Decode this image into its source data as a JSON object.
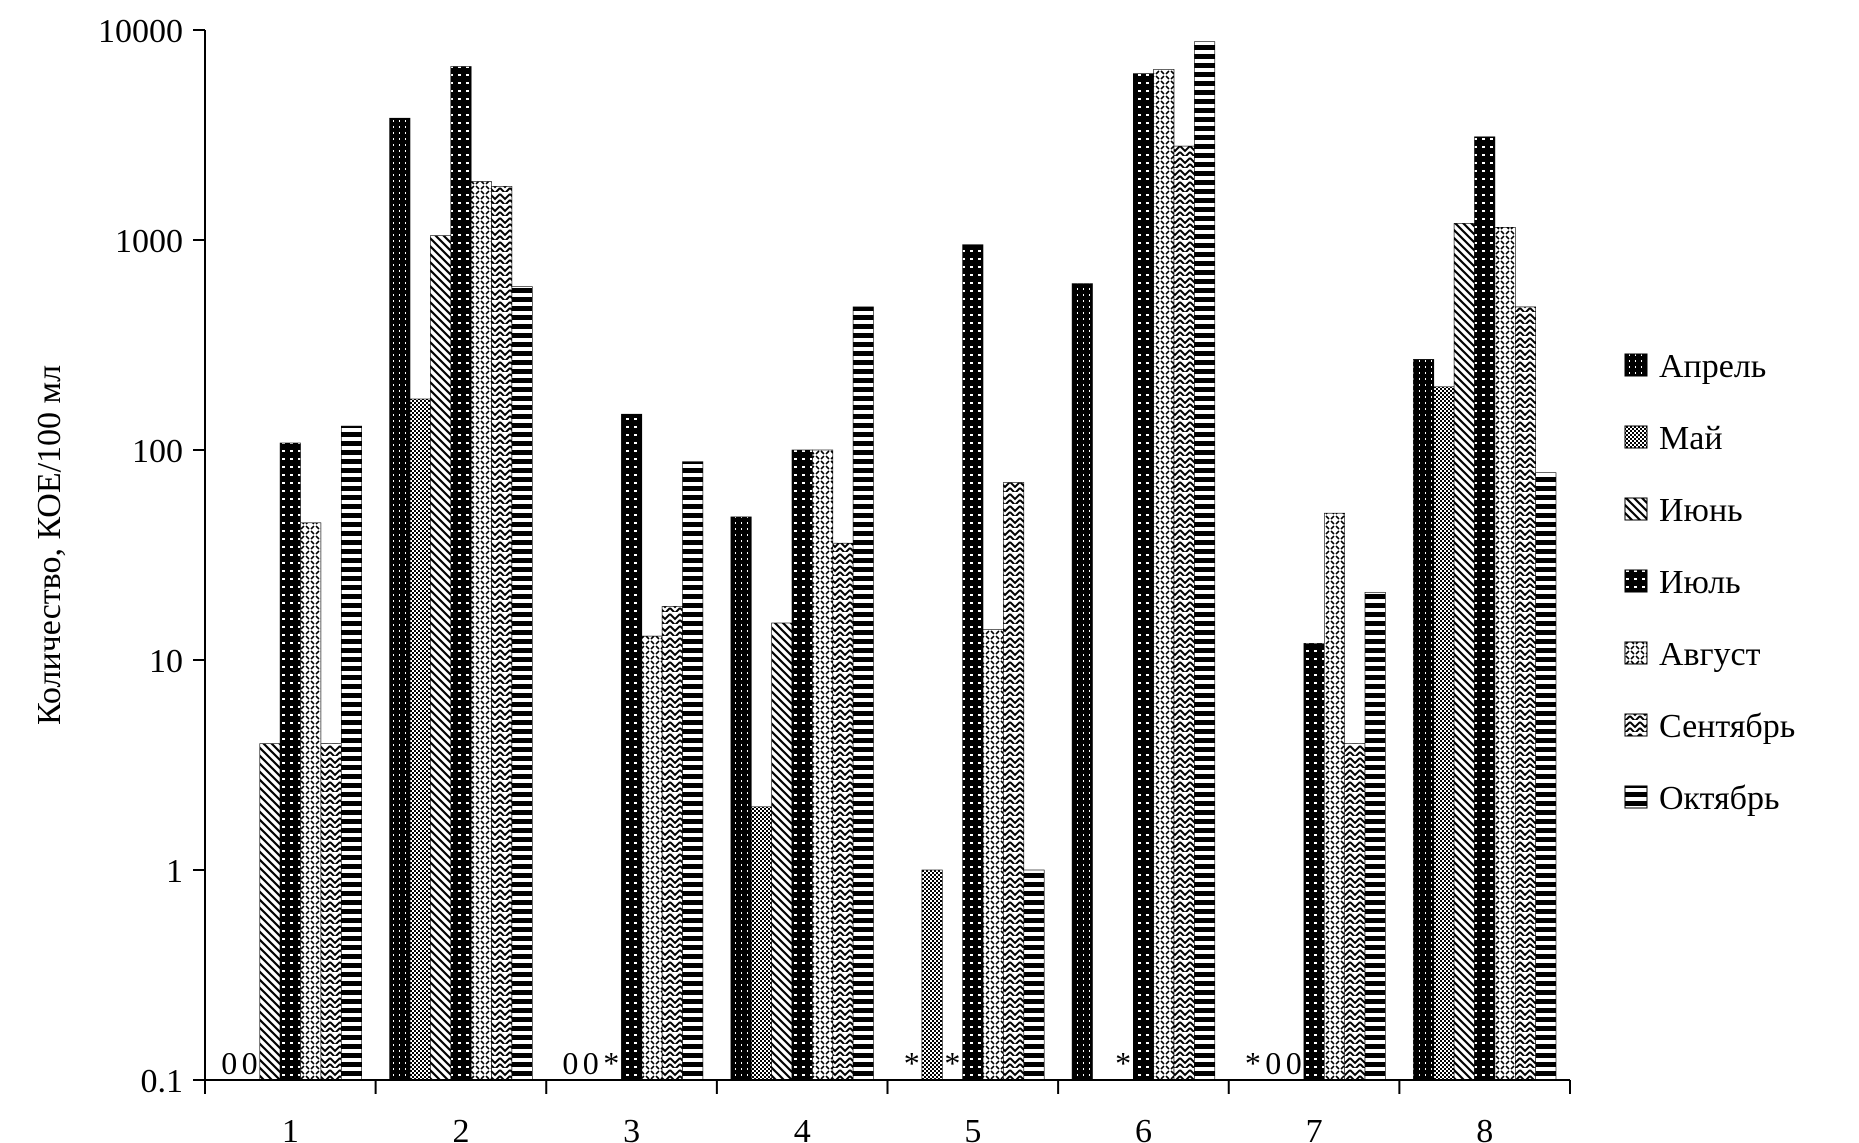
{
  "chart_data": {
    "type": "bar",
    "title": "",
    "xlabel": "",
    "ylabel": "Количество, КОЕ/100 мл",
    "yscale": "log",
    "ylim": [
      0.1,
      10000
    ],
    "yticks": [
      "0.1",
      "1",
      "10",
      "100",
      "1000",
      "10000"
    ],
    "categories": [
      "1",
      "2",
      "3",
      "4",
      "5",
      "6",
      "7",
      "8"
    ],
    "legend_position": "right",
    "grid": false,
    "series": [
      {
        "name": "Апрель",
        "pattern": "p-apr",
        "values": [
          0,
          3800,
          0,
          48,
          null,
          620,
          null,
          270
        ]
      },
      {
        "name": "Май",
        "pattern": "p-may",
        "values": [
          0,
          175,
          0,
          2,
          1,
          null,
          0,
          200
        ]
      },
      {
        "name": "Июнь",
        "pattern": "p-jun",
        "values": [
          4,
          1050,
          null,
          15,
          null,
          null,
          0,
          1200
        ]
      },
      {
        "name": "Июль",
        "pattern": "p-jul",
        "values": [
          108,
          6700,
          148,
          100,
          950,
          6200,
          12,
          3100
        ]
      },
      {
        "name": "Август",
        "pattern": "p-aug",
        "values": [
          45,
          1900,
          13,
          100,
          14,
          6500,
          50,
          1150
        ]
      },
      {
        "name": "Сентябрь",
        "pattern": "p-sep",
        "values": [
          4,
          1800,
          18,
          36,
          70,
          2800,
          4,
          480
        ]
      },
      {
        "name": "Октябрь",
        "pattern": "p-oct",
        "values": [
          130,
          600,
          88,
          480,
          1,
          8800,
          21,
          78
        ]
      }
    ],
    "annotations": [
      {
        "category": "1",
        "series": "Апрель",
        "text": "0"
      },
      {
        "category": "1",
        "series": "Май",
        "text": "0"
      },
      {
        "category": "3",
        "series": "Апрель",
        "text": "0"
      },
      {
        "category": "3",
        "series": "Май",
        "text": "0"
      },
      {
        "category": "3",
        "series": "Июнь",
        "text": "*"
      },
      {
        "category": "5",
        "series": "Апрель",
        "text": "*"
      },
      {
        "category": "5",
        "series": "Июнь",
        "text": "*"
      },
      {
        "category": "6",
        "series": "Июнь",
        "text": "*"
      },
      {
        "category": "7",
        "series": "Апрель",
        "text": "*"
      },
      {
        "category": "7",
        "series": "Май",
        "text": "0"
      },
      {
        "category": "7",
        "series": "Июнь",
        "text": "0"
      }
    ]
  }
}
